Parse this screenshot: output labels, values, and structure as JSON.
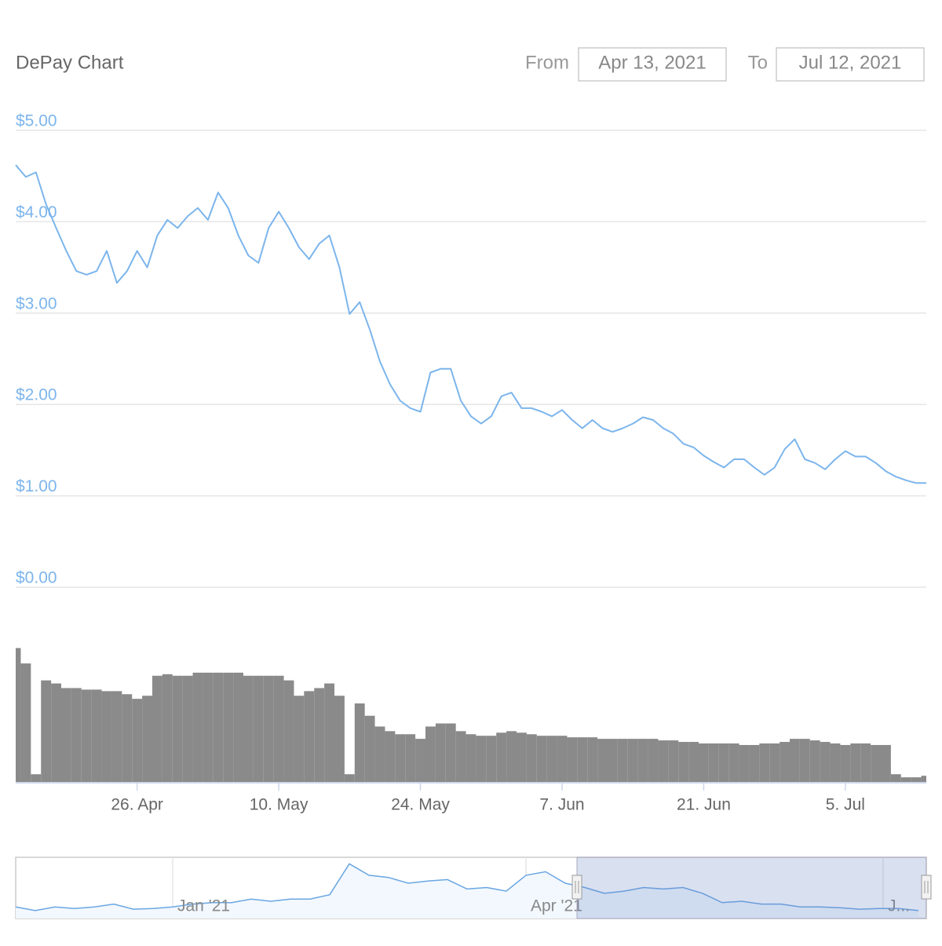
{
  "chart_data": {
    "type": "line",
    "title": "DePay Chart",
    "range_selector": {
      "from_label": "From",
      "from": "Apr 13, 2021",
      "to_label": "To",
      "to": "Jul 12, 2021"
    },
    "x": [
      "2021-04-14",
      "2021-04-15",
      "2021-04-16",
      "2021-04-17",
      "2021-04-18",
      "2021-04-19",
      "2021-04-20",
      "2021-04-21",
      "2021-04-22",
      "2021-04-23",
      "2021-04-24",
      "2021-04-25",
      "2021-04-26",
      "2021-04-27",
      "2021-04-28",
      "2021-04-29",
      "2021-04-30",
      "2021-05-01",
      "2021-05-02",
      "2021-05-03",
      "2021-05-04",
      "2021-05-05",
      "2021-05-06",
      "2021-05-07",
      "2021-05-08",
      "2021-05-09",
      "2021-05-10",
      "2021-05-11",
      "2021-05-12",
      "2021-05-13",
      "2021-05-14",
      "2021-05-15",
      "2021-05-16",
      "2021-05-17",
      "2021-05-18",
      "2021-05-19",
      "2021-05-20",
      "2021-05-21",
      "2021-05-22",
      "2021-05-23",
      "2021-05-24",
      "2021-05-25",
      "2021-05-26",
      "2021-05-27",
      "2021-05-28",
      "2021-05-29",
      "2021-05-30",
      "2021-05-31",
      "2021-06-01",
      "2021-06-02",
      "2021-06-03",
      "2021-06-04",
      "2021-06-05",
      "2021-06-06",
      "2021-06-07",
      "2021-06-08",
      "2021-06-09",
      "2021-06-10",
      "2021-06-11",
      "2021-06-12",
      "2021-06-13",
      "2021-06-14",
      "2021-06-15",
      "2021-06-16",
      "2021-06-17",
      "2021-06-18",
      "2021-06-19",
      "2021-06-20",
      "2021-06-21",
      "2021-06-22",
      "2021-06-23",
      "2021-06-24",
      "2021-06-25",
      "2021-06-26",
      "2021-06-27",
      "2021-06-28",
      "2021-06-29",
      "2021-06-30",
      "2021-07-01",
      "2021-07-02",
      "2021-07-03",
      "2021-07-04",
      "2021-07-05",
      "2021-07-06",
      "2021-07-07",
      "2021-07-08",
      "2021-07-09",
      "2021-07-10",
      "2021-07-11",
      "2021-07-12",
      "2021-07-13"
    ],
    "series": [
      {
        "color": "#7cb5ec",
        "values": [
          4.62,
          4.49,
          4.54,
          4.19,
          3.93,
          3.68,
          3.46,
          3.42,
          3.46,
          3.68,
          3.33,
          3.46,
          3.68,
          3.5,
          3.85,
          4.02,
          3.93,
          4.06,
          4.15,
          4.02,
          4.32,
          4.15,
          3.85,
          3.63,
          3.55,
          3.93,
          4.11,
          3.93,
          3.72,
          3.59,
          3.76,
          3.85,
          3.5,
          2.99,
          3.12,
          2.82,
          2.47,
          2.22,
          2.04,
          1.96,
          1.92,
          2.35,
          2.39,
          2.39,
          2.04,
          1.87,
          1.79,
          1.87,
          2.09,
          2.13,
          1.96,
          1.96,
          1.92,
          1.87,
          1.94,
          1.83,
          1.74,
          1.83,
          1.74,
          1.7,
          1.74,
          1.79,
          1.86,
          1.83,
          1.74,
          1.68,
          1.57,
          1.53,
          1.44,
          1.37,
          1.31,
          1.4,
          1.4,
          1.31,
          1.23,
          1.31,
          1.51,
          1.62,
          1.4,
          1.36,
          1.29,
          1.4,
          1.49,
          1.43,
          1.43,
          1.36,
          1.27,
          1.21,
          1.17,
          1.14,
          1.14
        ]
      }
    ],
    "volume": {
      "color": "#8a8a8a",
      "ylim": [
        0,
        100
      ],
      "values": [
        87,
        77,
        5,
        66,
        64,
        61,
        61,
        60,
        60,
        59,
        59,
        57,
        54,
        56,
        69,
        70,
        69,
        69,
        71,
        71,
        71,
        71,
        71,
        69,
        69,
        69,
        69,
        66,
        56,
        59,
        61,
        64,
        56,
        5,
        51,
        43,
        36,
        33,
        31,
        31,
        28,
        36,
        38,
        38,
        33,
        31,
        30,
        30,
        32,
        33,
        32,
        31,
        30,
        30,
        30,
        29,
        29,
        29,
        28,
        28,
        28,
        28,
        28,
        28,
        27,
        27,
        26,
        26,
        25,
        25,
        25,
        25,
        24,
        24,
        25,
        25,
        26,
        28,
        28,
        27,
        26,
        25,
        24,
        25,
        25,
        24,
        24,
        5,
        3,
        3,
        4
      ]
    },
    "xlim": [
      "2021-04-14",
      "2021-07-13"
    ],
    "xticks": [
      {
        "value": "2021-04-26",
        "label": "26. Apr"
      },
      {
        "value": "2021-05-10",
        "label": "10. May"
      },
      {
        "value": "2021-05-24",
        "label": "24. May"
      },
      {
        "value": "2021-06-07",
        "label": "7. Jun"
      },
      {
        "value": "2021-06-21",
        "label": "21. Jun"
      },
      {
        "value": "2021-07-05",
        "label": "5. Jul"
      }
    ],
    "ylim": [
      0,
      5
    ],
    "yticks": [
      {
        "value": 0,
        "label": "$0.00"
      },
      {
        "value": 1,
        "label": "$1.00"
      },
      {
        "value": 2,
        "label": "$2.00"
      },
      {
        "value": 3,
        "label": "$3.00"
      },
      {
        "value": 4,
        "label": "$4.00"
      },
      {
        "value": 5,
        "label": "$5.00"
      }
    ],
    "grid": true,
    "navigator": {
      "color": "#6aa6e2",
      "x": [
        "2020-11-22",
        "2020-11-27",
        "2020-12-02",
        "2020-12-07",
        "2020-12-12",
        "2020-12-17",
        "2020-12-22",
        "2020-12-27",
        "2021-01-01",
        "2021-01-06",
        "2021-01-11",
        "2021-01-16",
        "2021-01-21",
        "2021-01-26",
        "2021-01-31",
        "2021-02-05",
        "2021-02-10",
        "2021-02-15",
        "2021-02-20",
        "2021-02-25",
        "2021-03-02",
        "2021-03-07",
        "2021-03-12",
        "2021-03-17",
        "2021-03-22",
        "2021-03-27",
        "2021-04-01",
        "2021-04-06",
        "2021-04-11",
        "2021-04-16",
        "2021-04-21",
        "2021-04-26",
        "2021-05-01",
        "2021-05-06",
        "2021-05-11",
        "2021-05-16",
        "2021-05-21",
        "2021-05-26",
        "2021-05-31",
        "2021-06-05",
        "2021-06-10",
        "2021-06-15",
        "2021-06-20",
        "2021-06-25",
        "2021-06-30",
        "2021-07-05",
        "2021-07-10"
      ],
      "values": [
        1.6,
        1.1,
        1.6,
        1.4,
        1.6,
        2.0,
        1.3,
        1.4,
        1.6,
        2.0,
        2.2,
        2.2,
        2.7,
        2.4,
        2.7,
        2.7,
        3.3,
        7.6,
        6.0,
        5.7,
        4.9,
        5.2,
        5.4,
        4.1,
        4.3,
        3.8,
        6.0,
        6.5,
        4.9,
        4.3,
        3.5,
        3.8,
        4.3,
        4.1,
        4.3,
        3.5,
        2.2,
        2.4,
        2.0,
        2.0,
        1.6,
        1.6,
        1.5,
        1.3,
        1.4,
        1.4,
        1.1
      ],
      "xlim": [
        "2020-11-22",
        "2021-07-12"
      ],
      "ylim": [
        0,
        8.5
      ],
      "xticks": [
        {
          "value": "2021-01-01",
          "label": "Jan '21"
        },
        {
          "value": "2021-04-01",
          "label": "Apr '21"
        },
        {
          "value": "2021-07-01",
          "label": "J..."
        }
      ]
    }
  }
}
